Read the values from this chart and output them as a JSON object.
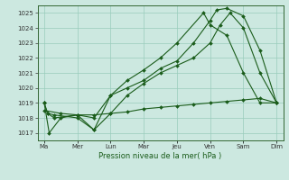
{
  "bg_color": "#cce8e0",
  "grid_color": "#99ccbb",
  "line_color": "#1a5c1a",
  "xlabel": "Pression niveau de la mer( hPa )",
  "ylim": [
    1016.5,
    1025.5
  ],
  "yticks": [
    1017,
    1018,
    1019,
    1020,
    1021,
    1022,
    1023,
    1024,
    1025
  ],
  "x_labels": [
    "Ma",
    "Mer",
    "Lun",
    "Mar",
    "Jeu",
    "Ven",
    "Sam",
    "Dim"
  ],
  "series": [
    {
      "x": [
        0.0,
        0.1,
        0.3,
        1.0,
        1.5,
        2.0,
        2.5,
        3.0,
        3.5,
        4.0,
        4.5,
        5.0,
        5.3,
        5.6,
        6.0,
        6.5,
        7.0
      ],
      "y": [
        1019.0,
        1018.3,
        1018.2,
        1018.0,
        1017.2,
        1018.3,
        1019.5,
        1020.3,
        1021.0,
        1021.5,
        1022.0,
        1023.0,
        1024.2,
        1025.0,
        1024.0,
        1021.0,
        1019.0
      ]
    },
    {
      "x": [
        0.0,
        0.1,
        0.3,
        1.0,
        1.5,
        2.0,
        2.5,
        3.0,
        3.5,
        4.0,
        4.5,
        5.0,
        5.2,
        5.5,
        6.0,
        6.5,
        7.0
      ],
      "y": [
        1019.0,
        1018.3,
        1018.0,
        1018.2,
        1018.0,
        1019.5,
        1020.0,
        1020.5,
        1021.3,
        1021.8,
        1023.0,
        1024.5,
        1025.2,
        1025.3,
        1024.8,
        1022.5,
        1019.0
      ]
    },
    {
      "x": [
        0.0,
        0.5,
        1.0,
        1.5,
        2.0,
        2.5,
        3.0,
        3.5,
        4.0,
        4.5,
        5.0,
        5.5,
        6.0,
        6.5,
        7.0
      ],
      "y": [
        1018.5,
        1018.3,
        1018.2,
        1018.2,
        1018.3,
        1018.4,
        1018.6,
        1018.7,
        1018.8,
        1018.9,
        1019.0,
        1019.1,
        1019.2,
        1019.3,
        1019.0
      ]
    },
    {
      "x": [
        0.0,
        0.15,
        0.5,
        1.0,
        1.5,
        2.0,
        2.5,
        3.0,
        3.5,
        4.0,
        4.8,
        5.0,
        5.5,
        6.0,
        6.5,
        7.0
      ],
      "y": [
        1019.0,
        1017.0,
        1018.0,
        1018.2,
        1017.2,
        1019.5,
        1020.5,
        1021.2,
        1022.0,
        1023.0,
        1025.0,
        1024.2,
        1023.5,
        1021.0,
        1019.0,
        1019.0
      ]
    }
  ]
}
